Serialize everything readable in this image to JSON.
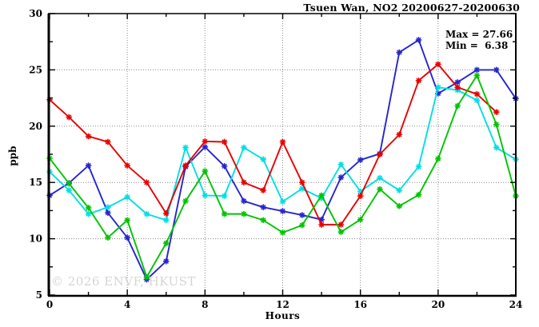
{
  "chart_data": {
    "type": "line",
    "title": "Tsuen Wan, NO2 20200627-20200630",
    "xlabel": "Hours",
    "ylabel": "ppb",
    "xlim": [
      0,
      24
    ],
    "ylim": [
      5,
      30
    ],
    "xticks_major": [
      0,
      4,
      8,
      12,
      16,
      20,
      24
    ],
    "xticks_minor": [
      2,
      6,
      10,
      14,
      18,
      22
    ],
    "yticks_major": [
      5,
      10,
      15,
      20,
      25,
      30
    ],
    "yticks_minor": [
      7.5,
      12.5,
      17.5,
      22.5,
      27.5
    ],
    "grid_x": [
      4,
      8,
      12,
      16,
      20
    ],
    "grid_y": [
      10,
      15,
      20,
      25
    ],
    "grid_on": true,
    "legend_position": "none",
    "marker": "asterisk",
    "annotations": {
      "max": "Max = 27.66",
      "min": "Min =  6.38"
    },
    "watermark": "© 2026 ENVF, HKUST",
    "series": [
      {
        "name": "blue",
        "color": "#2525d0",
        "x": [
          0,
          1,
          2,
          3,
          4,
          5,
          6,
          7,
          8,
          9,
          10,
          11,
          12,
          13,
          14,
          15,
          16,
          17,
          18,
          19,
          20,
          21,
          22,
          23,
          24
        ],
        "values": [
          13.85,
          14.95,
          16.5,
          12.3,
          10.1,
          6.38,
          8.0,
          16.4,
          18.15,
          16.45,
          13.35,
          12.8,
          12.45,
          12.1,
          11.7,
          15.45,
          17.0,
          17.55,
          26.55,
          27.66,
          22.9,
          23.9,
          25.0,
          25.0,
          22.45
        ]
      },
      {
        "name": "cyan",
        "color": "#00dfe4",
        "x": [
          0,
          1,
          2,
          3,
          4,
          5,
          6,
          7,
          8,
          9,
          10,
          11,
          12,
          13,
          14,
          15,
          16,
          17,
          18,
          19,
          20,
          21,
          22,
          23,
          24
        ],
        "values": [
          15.95,
          14.3,
          12.2,
          12.8,
          13.7,
          12.2,
          11.65,
          18.1,
          13.85,
          13.8,
          18.1,
          17.05,
          13.3,
          14.45,
          13.6,
          16.6,
          14.2,
          15.4,
          14.3,
          16.4,
          23.45,
          23.2,
          22.3,
          18.1,
          17.05
        ]
      },
      {
        "name": "red",
        "color": "#e80000",
        "x": [
          0,
          1,
          2,
          3,
          4,
          5,
          6,
          7,
          8,
          9,
          10,
          11,
          12,
          13,
          14,
          15,
          16,
          17,
          18,
          19,
          20,
          21,
          22,
          23
        ],
        "values": [
          22.35,
          20.8,
          19.1,
          18.6,
          16.5,
          15.0,
          12.25,
          16.5,
          18.65,
          18.6,
          15.0,
          14.3,
          18.6,
          15.0,
          11.25,
          11.25,
          13.8,
          17.5,
          19.25,
          24.05,
          25.5,
          23.45,
          22.85,
          21.25
        ]
      },
      {
        "name": "green",
        "color": "#00c400",
        "x": [
          0,
          1,
          2,
          3,
          4,
          5,
          6,
          7,
          8,
          9,
          10,
          11,
          12,
          13,
          14,
          15,
          16,
          17,
          18,
          19,
          20,
          21,
          22,
          23,
          24
        ],
        "values": [
          17.15,
          14.9,
          12.75,
          10.1,
          11.65,
          6.6,
          9.6,
          13.35,
          16.0,
          12.2,
          12.2,
          11.65,
          10.55,
          11.2,
          13.85,
          10.6,
          11.7,
          14.4,
          12.9,
          13.9,
          17.1,
          21.8,
          24.5,
          20.15,
          13.8
        ]
      }
    ]
  }
}
